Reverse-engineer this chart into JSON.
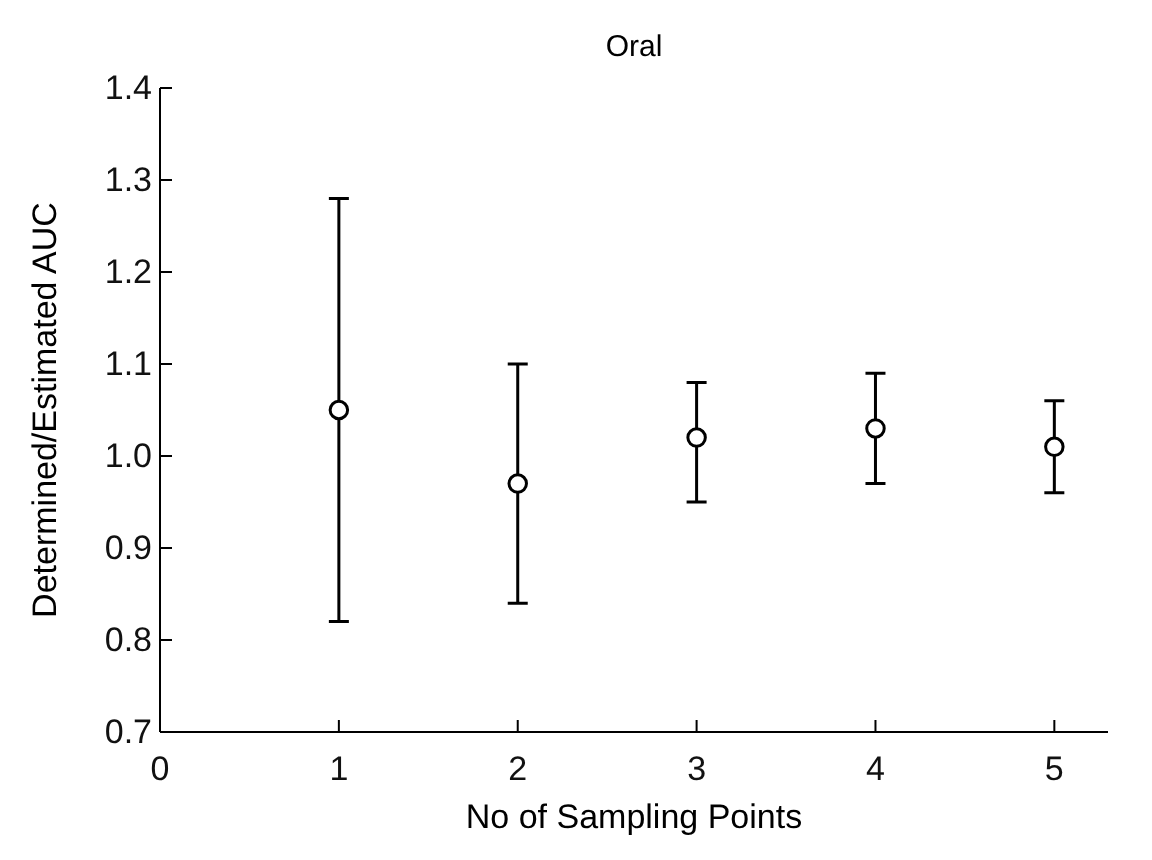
{
  "chart_data": {
    "type": "scatter",
    "title": "Oral",
    "xlabel": "No of Sampling Points",
    "ylabel": "Determined/Estimated AUC",
    "x": [
      1,
      2,
      3,
      4,
      5
    ],
    "values": [
      1.05,
      0.97,
      1.02,
      1.03,
      1.01
    ],
    "errors": [
      [
        0.82,
        1.28
      ],
      [
        0.84,
        1.1
      ],
      [
        0.95,
        1.08
      ],
      [
        0.97,
        1.09
      ],
      [
        0.96,
        1.06
      ]
    ],
    "color": "#000000",
    "marker": "circle",
    "xlim": [
      0,
      5.3
    ],
    "xticks": [
      0,
      1,
      2,
      3,
      4,
      5
    ],
    "ylim": [
      0.7,
      1.4
    ],
    "yticks": [
      {
        "value": 0.7,
        "label": "0.7"
      },
      {
        "value": 0.8,
        "label": "0.8"
      },
      {
        "value": 0.9,
        "label": "0.9"
      },
      {
        "value": 1.0,
        "label": "1.0"
      },
      {
        "value": 1.1,
        "label": "1.1"
      },
      {
        "value": 1.2,
        "label": "1.2"
      },
      {
        "value": 1.3,
        "label": "1.3"
      },
      {
        "value": 1.4,
        "label": "1.4"
      }
    ],
    "grid": false
  }
}
